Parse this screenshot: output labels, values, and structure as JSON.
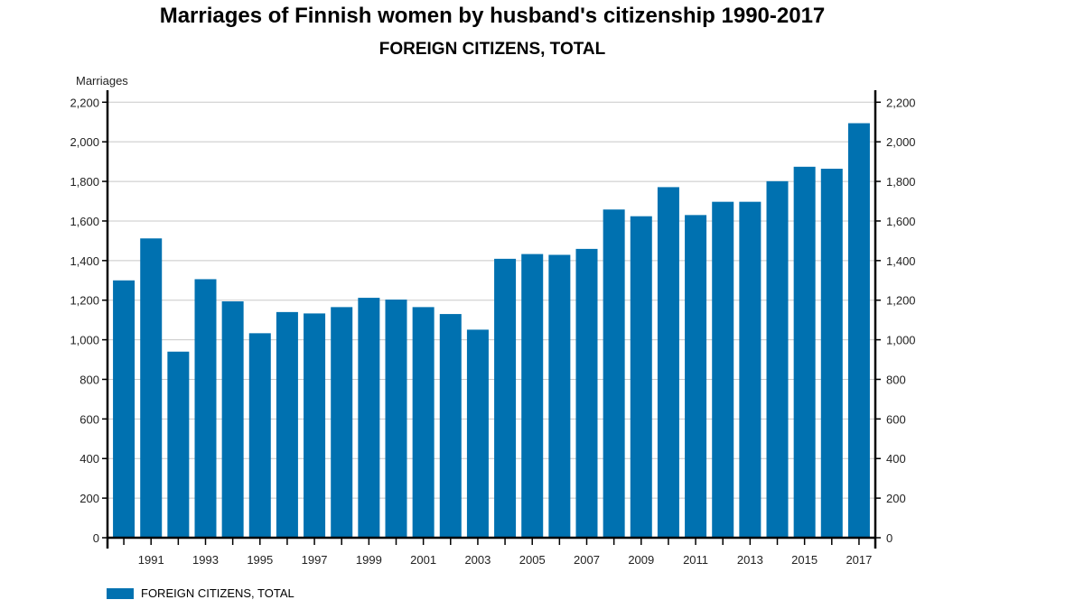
{
  "chart_data": {
    "type": "bar",
    "title": "Marriages of Finnish women by husband's citizenship 1990-2017",
    "subtitle": "FOREIGN CITIZENS, TOTAL",
    "ylabel": "Marriages",
    "xlabel": "",
    "ylim": [
      0,
      2200
    ],
    "yticks": [
      0,
      200,
      400,
      600,
      800,
      1000,
      1200,
      1400,
      1600,
      1800,
      2000,
      2200
    ],
    "ytick_labels": [
      "0",
      "200",
      "400",
      "600",
      "800",
      "1,000",
      "1,200",
      "1,400",
      "1,600",
      "1,800",
      "2,000",
      "2,200"
    ],
    "grid": true,
    "legend": "bottom-left",
    "color": "#0071b0",
    "categories": [
      "1990",
      "1991",
      "1992",
      "1993",
      "1994",
      "1995",
      "1996",
      "1997",
      "1998",
      "1999",
      "2000",
      "2001",
      "2002",
      "2003",
      "2004",
      "2005",
      "2006",
      "2007",
      "2008",
      "2009",
      "2010",
      "2011",
      "2012",
      "2013",
      "2014",
      "2015",
      "2016",
      "2017"
    ],
    "xtick_labels": [
      "1991",
      "1993",
      "1995",
      "1997",
      "1999",
      "2001",
      "2003",
      "2005",
      "2007",
      "2009",
      "2011",
      "2013",
      "2015",
      "2017"
    ],
    "series": [
      {
        "name": "FOREIGN CITIZENS, TOTAL",
        "values": [
          1300,
          1512,
          940,
          1306,
          1194,
          1033,
          1140,
          1133,
          1165,
          1212,
          1203,
          1165,
          1130,
          1051,
          1409,
          1433,
          1429,
          1459,
          1658,
          1624,
          1771,
          1630,
          1697,
          1697,
          1801,
          1874,
          1864,
          2094
        ]
      }
    ]
  }
}
